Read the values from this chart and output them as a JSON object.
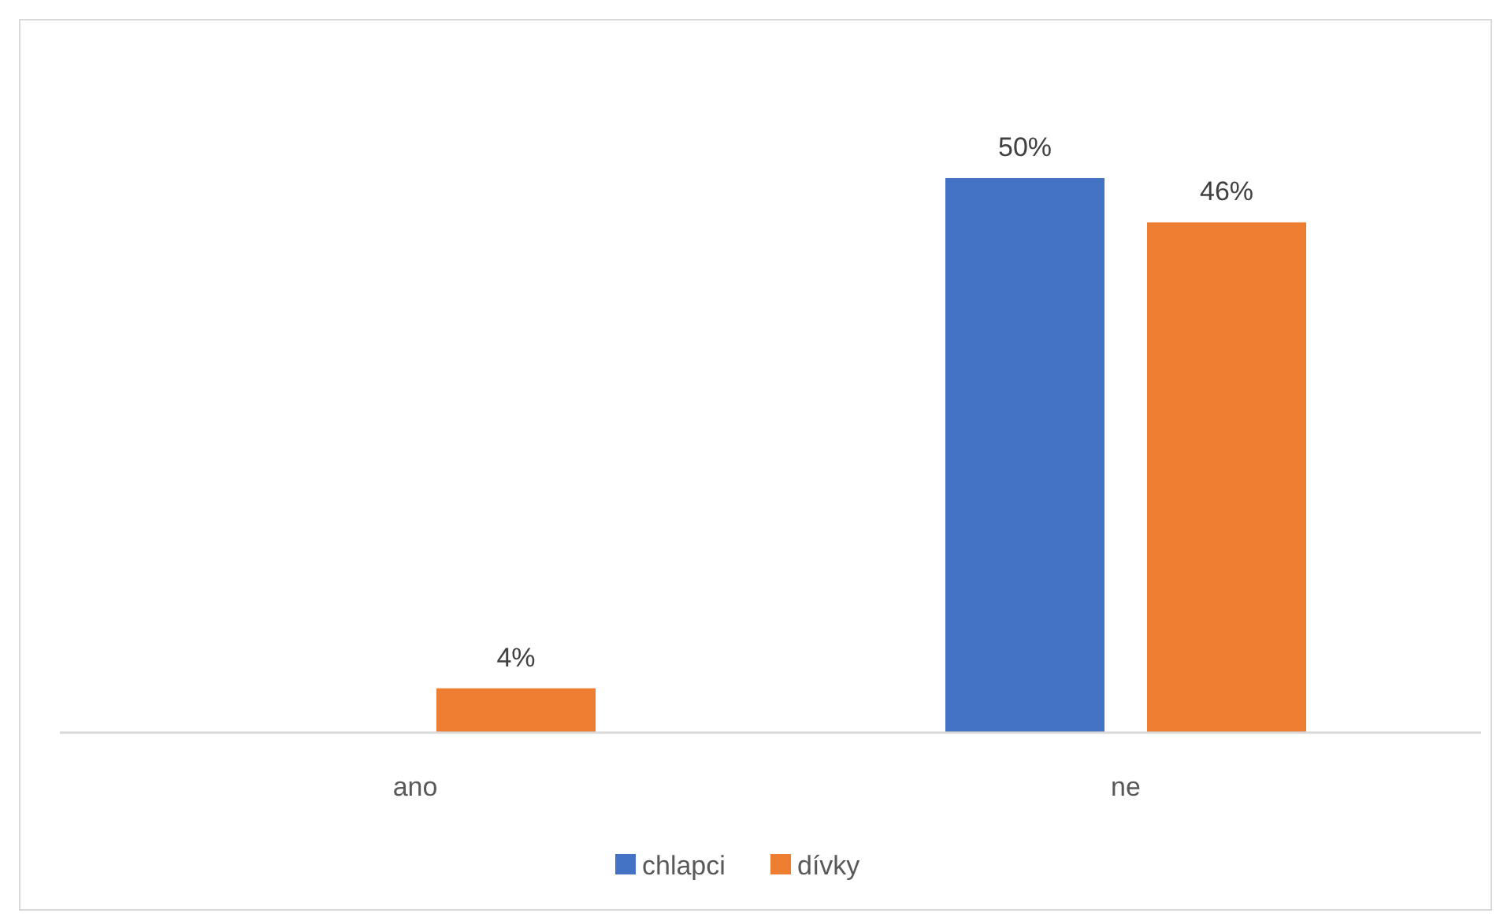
{
  "chart_data": {
    "type": "bar",
    "categories": [
      "ano",
      "ne"
    ],
    "series": [
      {
        "name": "chlapci",
        "color": "#4472c4",
        "values": [
          null,
          50
        ],
        "value_labels": [
          null,
          "50%"
        ]
      },
      {
        "name": "dívky",
        "color": "#ed7d31",
        "values": [
          4,
          46
        ],
        "value_labels": [
          "4%",
          "46%"
        ]
      }
    ],
    "tick_labels": "x",
    "legend": "bottom",
    "grid": false
  }
}
